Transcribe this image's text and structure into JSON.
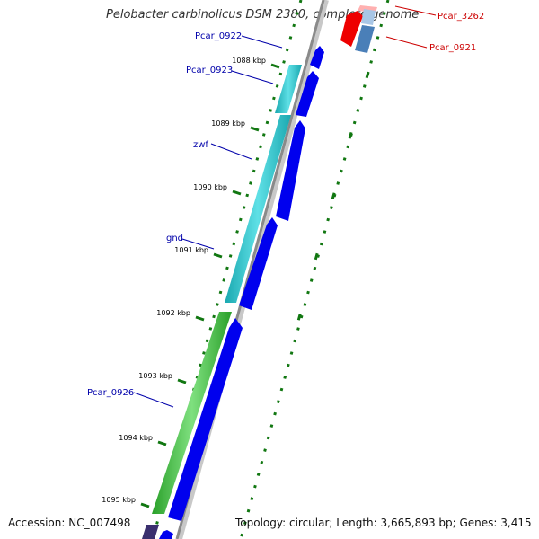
{
  "title": "Pelobacter carbinolicus DSM 2380, complete genome",
  "accession": "Accession: NC_007498",
  "summary": "Topology: circular; Length: 3,665,893 bp; Genes: 3,415",
  "colors": {
    "backbone": "#909090",
    "tick": "#117711",
    "scale_text": "#000000",
    "gene_label": "#0000aa",
    "gene_label_alt": "#cc0000",
    "forward_cds": "#0000ee",
    "operon_cyan": "#22c4cc",
    "operon_green": "#33bb33",
    "reverse_red": "#ee0000",
    "reverse_steelblue": "#4a7fb8"
  },
  "scale_labels": [
    "1088 kbp",
    "1089 kbp",
    "1090 kbp",
    "1091 kbp",
    "1092 kbp",
    "1093 kbp",
    "1094 kbp",
    "1095 kbp"
  ],
  "gene_labels": {
    "pcar_0922": "Pcar_0922",
    "pcar_0923": "Pcar_0923",
    "zwf": "zwf",
    "gnd": "gnd",
    "pcar_0926": "Pcar_0926",
    "pcar_3262": "Pcar_3262",
    "pcar_0921": "Pcar_0921"
  }
}
